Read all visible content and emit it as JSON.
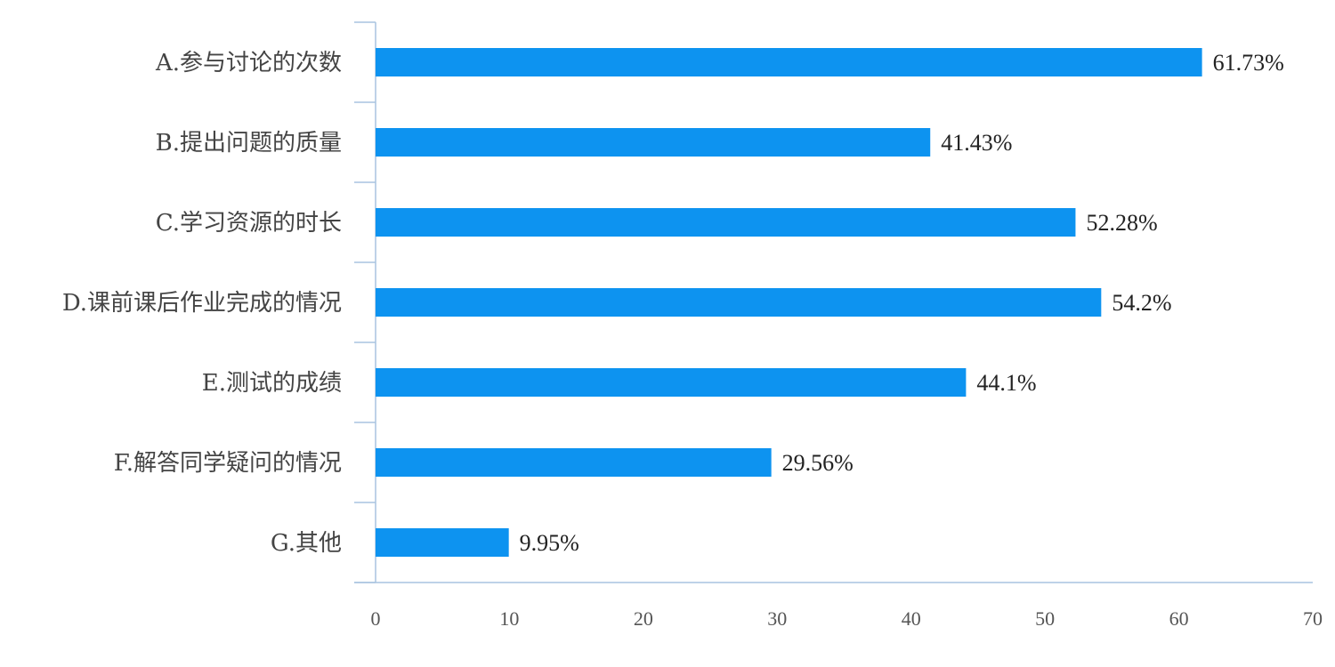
{
  "chart_data": {
    "type": "bar",
    "orientation": "horizontal",
    "categories": [
      "A.参与讨论的次数",
      "B.提出问题的质量",
      "C.学习资源的时长",
      "D.课前课后作业完成的情况",
      "E.测试的成绩",
      "F.解答同学疑问的情况",
      "G.其他"
    ],
    "values": [
      61.73,
      41.43,
      52.28,
      54.2,
      44.1,
      29.56,
      9.95
    ],
    "value_labels": [
      "61.73%",
      "41.43%",
      "52.28%",
      "54.2%",
      "44.1%",
      "29.56%",
      "9.95%"
    ],
    "x_ticks": [
      "0",
      "10",
      "20",
      "30",
      "40",
      "50",
      "60",
      "70"
    ],
    "xlim": [
      0,
      70
    ],
    "title": "",
    "xlabel": "",
    "ylabel": "",
    "grid": false,
    "legend": "none",
    "bar_color": "#0d93f0",
    "axis_color": "#a9c4e0"
  }
}
